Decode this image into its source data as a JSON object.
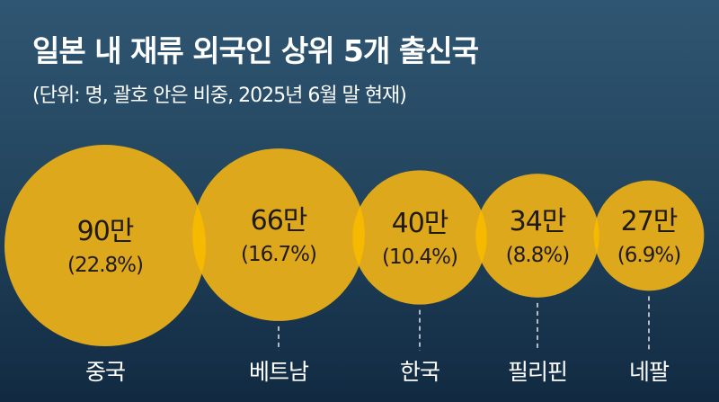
{
  "chart_data": {
    "type": "bubble",
    "title": "일본 내 재류 외국인 상위 5개 출신국",
    "subtitle": "(단위: 명, 괄호 안은 비중, 2025년 6월 말 현재)",
    "categories": [
      "중국",
      "베트남",
      "한국",
      "필리핀",
      "네팔"
    ],
    "values": [
      900000,
      660000,
      400000,
      340000,
      270000
    ],
    "value_labels": [
      "90만",
      "66만",
      "40만",
      "34만",
      "27만"
    ],
    "shares": [
      22.8,
      16.7,
      10.4,
      8.8,
      6.9
    ],
    "share_labels": [
      "(22.8%)",
      "(16.7%)",
      "(10.4%)",
      "(8.8%)",
      "(6.9%)"
    ],
    "colors": {
      "bubble": "#dea81c",
      "overlap": "#f5b900",
      "background_top": "#2f5672",
      "background_bottom": "#112a42"
    }
  }
}
